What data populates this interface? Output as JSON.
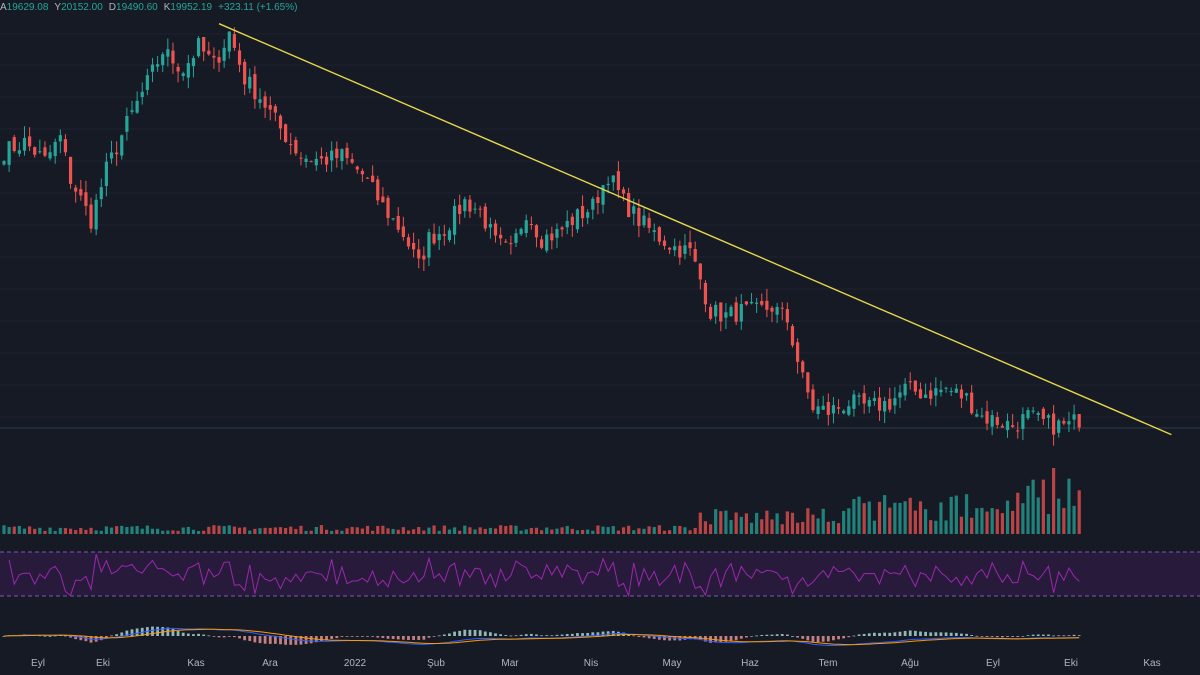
{
  "ohlc": {
    "open_label": "A",
    "open": "19629.08",
    "high_label": "Y",
    "high": "20152.00",
    "low_label": "D",
    "low": "19490.60",
    "close_label": "K",
    "close": "19952.19",
    "change": "+323.11 (+1.65%)"
  },
  "colors": {
    "background": "#161a25",
    "up": "#26a69a",
    "down": "#ef5350",
    "trendline": "#e5d84b",
    "rsi_band": "#2a1b3d",
    "rsi_line": "#9c27b0"
  },
  "chart_data": {
    "type": "candlestick",
    "x_axis_labels": [
      "Eyl",
      "Eki",
      "Kas",
      "Ara",
      "2022",
      "Şub",
      "Mar",
      "Nis",
      "May",
      "Haz",
      "Tem",
      "Ağu",
      "Eyl",
      "Eki",
      "Kas"
    ],
    "price_anchors": [
      [
        0,
        22100
      ],
      [
        4,
        22300
      ],
      [
        8,
        21900
      ],
      [
        11,
        22400
      ],
      [
        13,
        21500
      ],
      [
        17,
        20600
      ],
      [
        20,
        21700
      ],
      [
        24,
        22700
      ],
      [
        28,
        23600
      ],
      [
        31,
        24300
      ],
      [
        35,
        23900
      ],
      [
        38,
        24400
      ],
      [
        41,
        24000
      ],
      [
        44,
        24700
      ],
      [
        47,
        23700
      ],
      [
        50,
        23300
      ],
      [
        54,
        22600
      ],
      [
        58,
        22000
      ],
      [
        62,
        21900
      ],
      [
        66,
        22000
      ],
      [
        70,
        21600
      ],
      [
        74,
        20900
      ],
      [
        78,
        20300
      ],
      [
        81,
        19600
      ],
      [
        83,
        20200
      ],
      [
        86,
        20400
      ],
      [
        90,
        21000
      ],
      [
        93,
        20800
      ],
      [
        96,
        20100
      ],
      [
        99,
        19900
      ],
      [
        102,
        20800
      ],
      [
        105,
        20200
      ],
      [
        108,
        20300
      ],
      [
        111,
        20600
      ],
      [
        115,
        20900
      ],
      [
        118,
        21600
      ],
      [
        121,
        21000
      ],
      [
        124,
        20600
      ],
      [
        127,
        20300
      ],
      [
        131,
        20000
      ],
      [
        134,
        19900
      ],
      [
        136,
        19300
      ],
      [
        138,
        18600
      ],
      [
        141,
        18500
      ],
      [
        144,
        18600
      ],
      [
        147,
        18600
      ],
      [
        150,
        18700
      ],
      [
        153,
        18400
      ],
      [
        156,
        17100
      ],
      [
        158,
        16500
      ],
      [
        161,
        16400
      ],
      [
        165,
        16600
      ],
      [
        169,
        16500
      ],
      [
        173,
        16600
      ],
      [
        176,
        16900
      ],
      [
        180,
        16800
      ],
      [
        184,
        16900
      ],
      [
        188,
        16700
      ],
      [
        191,
        16300
      ],
      [
        194,
        16200
      ],
      [
        197,
        16100
      ],
      [
        200,
        16300
      ],
      [
        202,
        16200
      ],
      [
        205,
        16100
      ],
      [
        208,
        16100
      ],
      [
        210,
        16250
      ]
    ],
    "trendline": {
      "start": [
        42,
        24900
      ],
      "end": [
        228,
        15900
      ]
    },
    "ylim": [
      15300,
      25200
    ]
  }
}
